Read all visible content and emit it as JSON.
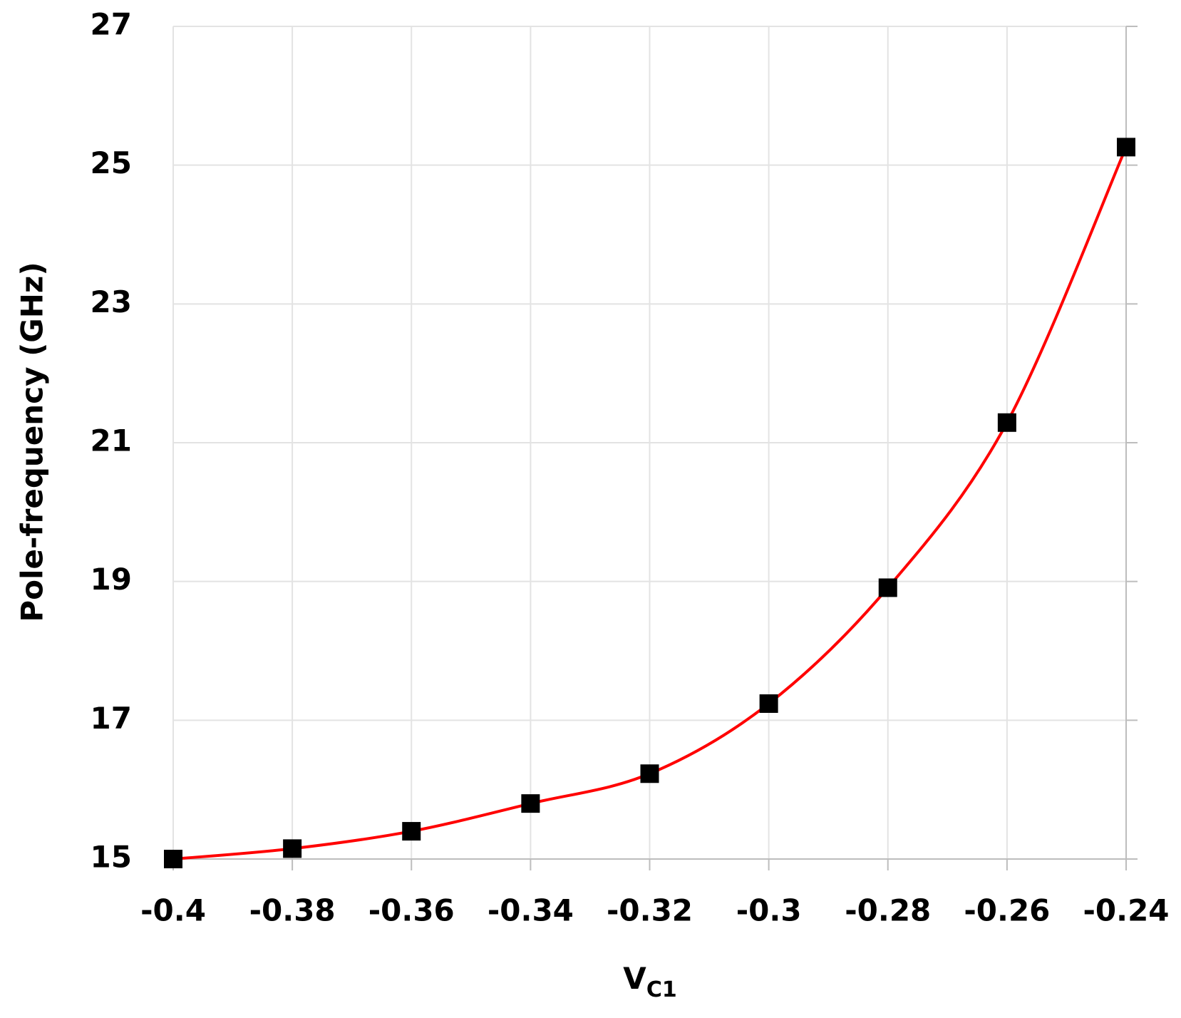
{
  "chart_data": {
    "type": "line",
    "ylabel": "Pole-frequency (GHz)",
    "xlabel": "V",
    "xlabel_sub": "C1",
    "x": [
      -0.4,
      -0.38,
      -0.36,
      -0.34,
      -0.32,
      -0.3,
      -0.28,
      -0.26,
      -0.24
    ],
    "series": [
      {
        "color": "#ff0000",
        "marker_color": "#000000",
        "values": [
          15.0,
          15.15,
          15.4,
          15.8,
          16.23,
          17.24,
          18.91,
          21.29,
          25.26
        ]
      }
    ],
    "xlim": [
      -0.4,
      -0.24
    ],
    "xticks": [
      -0.4,
      -0.38,
      -0.36,
      -0.34,
      -0.32,
      -0.3,
      -0.28,
      -0.26,
      -0.24
    ],
    "ylim": [
      15,
      27
    ],
    "yticks": [
      15,
      17,
      19,
      21,
      23,
      25,
      27
    ],
    "grid": true
  }
}
